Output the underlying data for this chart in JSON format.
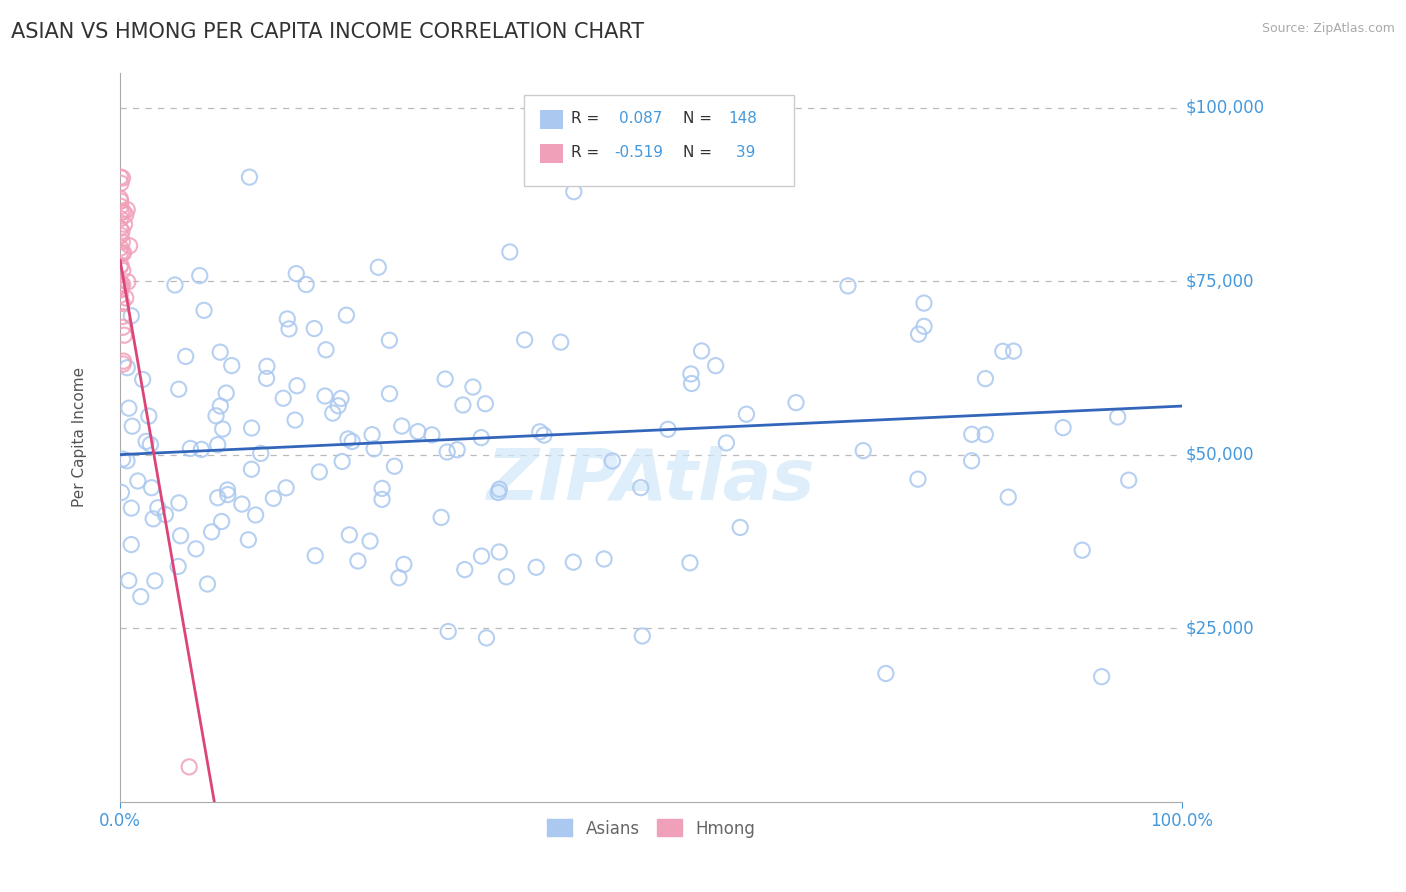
{
  "title": "ASIAN VS HMONG PER CAPITA INCOME CORRELATION CHART",
  "source": "Source: ZipAtlas.com",
  "ylabel": "Per Capita Income",
  "xlim": [
    0,
    1.0
  ],
  "ylim": [
    0,
    105000
  ],
  "asian_color": "#aac8f0",
  "asian_edge_color": "#aac8f0",
  "asian_line_color": "#3366bb",
  "hmong_color": "#f0a0b8",
  "hmong_edge_color": "#f0a0b8",
  "hmong_line_color": "#dd4477",
  "asian_R": 0.087,
  "asian_N": 148,
  "hmong_R": -0.519,
  "hmong_N": 39,
  "grid_color": "#bbbbbb",
  "background_color": "#ffffff",
  "title_color": "#333333",
  "title_fontsize": 15,
  "label_fontsize": 11,
  "tick_fontsize": 12,
  "ytick_color": "#4499dd",
  "xtick_color": "#4499dd",
  "watermark_text": "ZIPAtlas",
  "watermark_color": "#d0e8f8",
  "legend_box_color": "#cccccc",
  "legend_text_color": "#333333",
  "legend_value_color": "#4499dd",
  "bottom_legend_color": "#666666"
}
